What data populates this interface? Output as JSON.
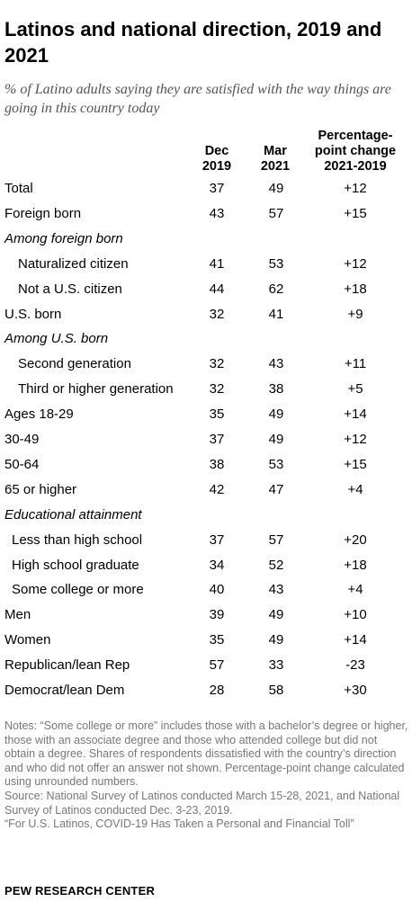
{
  "title": "Latinos and national direction, 2019 and 2021",
  "subtitle": "% of Latino adults saying they are satisfied with the way things are going in this country today",
  "columns": {
    "dec": "Dec 2019",
    "mar": "Mar 2021",
    "change": "Percentage-point change 2021-2019"
  },
  "chart_data": {
    "type": "table",
    "columns": [
      "Dec 2019",
      "Mar 2021",
      "Percentage-point change 2021-2019"
    ],
    "rows": [
      {
        "label": "Total",
        "dec": "37",
        "mar": "49",
        "change": "+12",
        "style": "main"
      },
      {
        "label": "Foreign born",
        "dec": "43",
        "mar": "57",
        "change": "+15",
        "style": "main"
      },
      {
        "label": "Among foreign born",
        "dec": "",
        "mar": "",
        "change": "",
        "style": "section"
      },
      {
        "label": "Naturalized citizen",
        "dec": "41",
        "mar": "53",
        "change": "+12",
        "style": "indent"
      },
      {
        "label": "Not a U.S. citizen",
        "dec": "44",
        "mar": "62",
        "change": "+18",
        "style": "indent"
      },
      {
        "label": "U.S. born",
        "dec": "32",
        "mar": "41",
        "change": "+9",
        "style": "main"
      },
      {
        "label": "Among U.S. born",
        "dec": "",
        "mar": "",
        "change": "",
        "style": "section"
      },
      {
        "label": "Second generation",
        "dec": "32",
        "mar": "43",
        "change": "+11",
        "style": "indent"
      },
      {
        "label": "Third or higher generation",
        "dec": "32",
        "mar": "38",
        "change": "+5",
        "style": "indent"
      },
      {
        "label": "Ages 18-29",
        "dec": "35",
        "mar": "49",
        "change": "+14",
        "style": "main"
      },
      {
        "label": "30-49",
        "dec": "37",
        "mar": "49",
        "change": "+12",
        "style": "main"
      },
      {
        "label": "50-64",
        "dec": "38",
        "mar": "53",
        "change": "+15",
        "style": "main"
      },
      {
        "label": "65 or higher",
        "dec": "42",
        "mar": "47",
        "change": "+4",
        "style": "main"
      },
      {
        "label": "Educational attainment",
        "dec": "",
        "mar": "",
        "change": "",
        "style": "section"
      },
      {
        "label": "Less than high school",
        "dec": "37",
        "mar": "57",
        "change": "+20",
        "style": "indent2"
      },
      {
        "label": "High school graduate",
        "dec": "34",
        "mar": "52",
        "change": "+18",
        "style": "indent2"
      },
      {
        "label": "Some college or more",
        "dec": "40",
        "mar": "43",
        "change": "+4",
        "style": "indent2"
      },
      {
        "label": "Men",
        "dec": "39",
        "mar": "49",
        "change": "+10",
        "style": "main"
      },
      {
        "label": "Women",
        "dec": "35",
        "mar": "49",
        "change": "+14",
        "style": "main"
      },
      {
        "label": "Republican/lean Rep",
        "dec": "57",
        "mar": "33",
        "change": "-23",
        "style": "main"
      },
      {
        "label": "Democrat/lean Dem",
        "dec": "28",
        "mar": "58",
        "change": "+30",
        "style": "main"
      }
    ]
  },
  "notes": "Notes: “Some college or more” includes those with a bachelor’s degree or higher, those with an associate degree and those who attended college but did not obtain a degree. Shares of respondents dissatisfied with the country’s direction and who did not offer an answer not shown. Percentage-point change calculated using unrounded numbers.",
  "source": "Source: National Survey of Latinos conducted March 15-28, 2021, and National Survey of Latinos conducted Dec. 3-23, 2019.",
  "report": "“For U.S. Latinos, COVID-19 Has Taken a Personal and Financial Toll”",
  "brand": "PEW RESEARCH CENTER"
}
